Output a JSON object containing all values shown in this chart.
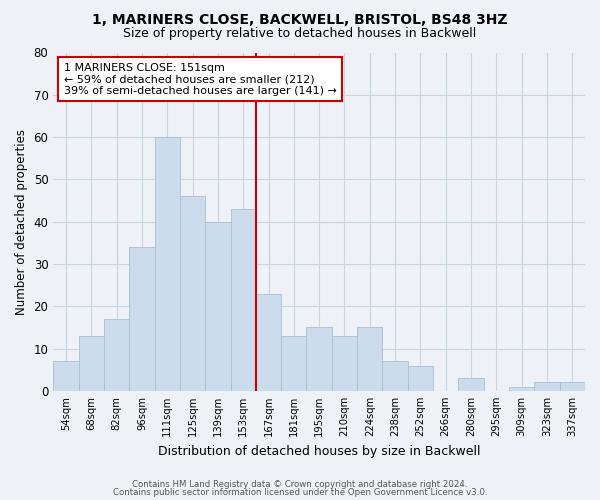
{
  "title": "1, MARINERS CLOSE, BACKWELL, BRISTOL, BS48 3HZ",
  "subtitle": "Size of property relative to detached houses in Backwell",
  "xlabel": "Distribution of detached houses by size in Backwell",
  "ylabel": "Number of detached properties",
  "categories": [
    "54sqm",
    "68sqm",
    "82sqm",
    "96sqm",
    "111sqm",
    "125sqm",
    "139sqm",
    "153sqm",
    "167sqm",
    "181sqm",
    "195sqm",
    "210sqm",
    "224sqm",
    "238sqm",
    "252sqm",
    "266sqm",
    "280sqm",
    "295sqm",
    "309sqm",
    "323sqm",
    "337sqm"
  ],
  "values": [
    7,
    13,
    17,
    34,
    60,
    46,
    40,
    43,
    23,
    13,
    15,
    13,
    15,
    7,
    6,
    0,
    3,
    0,
    1,
    2,
    2
  ],
  "bar_color": "#ccdcec",
  "bar_edge_color": "#a8c0d4",
  "highlight_line_color": "#cc0000",
  "annotation_text_line1": "1 MARINERS CLOSE: 151sqm",
  "annotation_text_line2": "← 59% of detached houses are smaller (212)",
  "annotation_text_line3": "39% of semi-detached houses are larger (141) →",
  "annotation_box_color": "#ffffff",
  "annotation_box_edge_color": "#cc0000",
  "ylim": [
    0,
    80
  ],
  "yticks": [
    0,
    10,
    20,
    30,
    40,
    50,
    60,
    70,
    80
  ],
  "footer_line1": "Contains HM Land Registry data © Crown copyright and database right 2024.",
  "footer_line2": "Contains public sector information licensed under the Open Government Licence v3.0.",
  "bg_color": "#eef2f7",
  "plot_bg_color": "#eef2f7",
  "grid_color": "#c8d4e0"
}
